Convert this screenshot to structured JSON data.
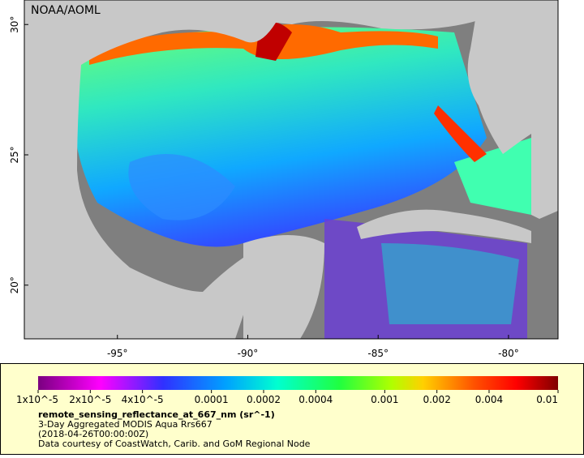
{
  "map": {
    "credit": "NOAA/AOML",
    "lonlim": [
      -98.57,
      -78.1
    ],
    "latlim": [
      17.94,
      30.94
    ],
    "lon_ticks": [
      {
        "value": -95,
        "label": "-95°"
      },
      {
        "value": -90,
        "label": "-90°"
      },
      {
        "value": -85,
        "label": "-85°"
      },
      {
        "value": -80,
        "label": "-80°"
      }
    ],
    "lat_ticks": [
      {
        "value": 30,
        "label": "30°"
      },
      {
        "value": 25,
        "label": "25°"
      },
      {
        "value": 20,
        "label": "20°"
      }
    ]
  },
  "legend": {
    "scale": "log",
    "lim": [
      1e-05,
      0.01
    ],
    "ticks": [
      {
        "value": 1e-05,
        "label": "1x10^-5"
      },
      {
        "value": 2e-05,
        "label": "2x10^-5"
      },
      {
        "value": 4e-05,
        "label": "4x10^-5"
      },
      0.0001,
      0.0002,
      0.0004,
      0.001,
      0.002,
      0.004,
      0.01
    ],
    "variable": "remote_sensing_reflectance_at_667_nm (sr^-1)",
    "dataset": "3-Day Aggregated MODIS Aqua Rrs667",
    "time": "(2018-04-26T00:00:00Z)",
    "source": "Data courtesy of CoastWatch, Carib. and GoM Regional Node"
  }
}
